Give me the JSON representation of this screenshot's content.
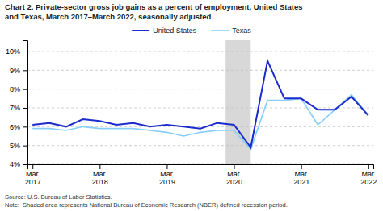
{
  "chart_data": {
    "type": "line",
    "title": "Chart 2. Private-sector gross job gains as a percent of employment, United States\nand Texas, March 2017–March 2022, seasonally adjusted",
    "source": "Source: U.S. Bureau of Labor Statistics.\nNote:  Shaded area represents National Bureau of Economic Research (NBER) defined recession period.",
    "categories": [
      "Mar.\n2017",
      null,
      null,
      null,
      "Mar.\n2018",
      null,
      null,
      null,
      "Mar.\n2019",
      null,
      null,
      null,
      "Mar.\n2020",
      null,
      null,
      null,
      "Mar.\n2021",
      null,
      null,
      null,
      "Mar.\n2022"
    ],
    "series": [
      {
        "name": "United States",
        "color": "#1c2ccc",
        "values": [
          6.1,
          6.2,
          6.0,
          6.4,
          6.3,
          6.1,
          6.2,
          6.0,
          6.1,
          6.0,
          5.9,
          6.2,
          6.1,
          4.9,
          9.5,
          7.5,
          7.5,
          6.9,
          6.9,
          7.6,
          6.6
        ]
      },
      {
        "name": "Texas",
        "color": "#87cefa",
        "values": [
          5.9,
          5.9,
          5.8,
          6.0,
          5.9,
          5.9,
          5.9,
          5.8,
          5.7,
          5.5,
          5.7,
          5.8,
          5.8,
          4.8,
          7.4,
          7.4,
          7.5,
          6.1,
          6.9,
          7.7,
          6.6
        ]
      }
    ],
    "shaded_range": {
      "start": 11.5,
      "end": 13.0,
      "color": "#d8d8d8"
    },
    "ylim": [
      4.0,
      10.6
    ],
    "yticks": [
      {
        "value": 4,
        "label": "4%"
      },
      {
        "value": 5,
        "label": "5%"
      },
      {
        "value": 6,
        "label": "6%"
      },
      {
        "value": 7,
        "label": "7%"
      },
      {
        "value": 8,
        "label": "8%"
      },
      {
        "value": 9,
        "label": "9%"
      },
      {
        "value": 10,
        "label": "10%"
      }
    ],
    "grid": true
  }
}
